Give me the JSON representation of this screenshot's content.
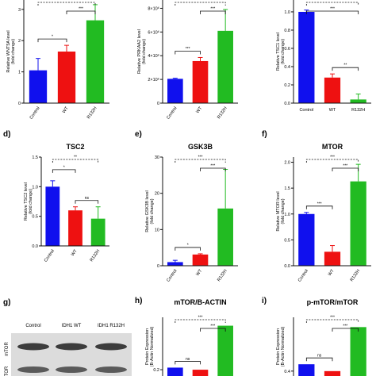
{
  "colors": {
    "control": "#1010ee",
    "wt": "#ee1111",
    "r132h": "#22bb22"
  },
  "chart_data": [
    {
      "id": "a",
      "letter": "",
      "type": "bar",
      "title": "",
      "ylabel": "Relative WNT5A level\n(fold change)",
      "categories": [
        "Control",
        "WT",
        "R132H"
      ],
      "values": [
        1.05,
        1.65,
        2.65
      ],
      "errors": [
        0.38,
        0.2,
        0.5
      ],
      "ylim": [
        0,
        3.3
      ],
      "yticks": [
        "0",
        "1",
        "2",
        "3"
      ],
      "tick_values": [
        0,
        1,
        2,
        3
      ],
      "significance": [
        {
          "from": 0,
          "to": 1,
          "label": "*",
          "dashed": false
        },
        {
          "from": 1,
          "to": 2,
          "label": "***",
          "dashed": false
        },
        {
          "from": 0,
          "to": 2,
          "label": "",
          "dashed": true
        }
      ]
    },
    {
      "id": "b",
      "letter": "",
      "type": "bar",
      "title": "",
      "ylabel": "Relative PRKAA2 level\n(fold change)",
      "categories": [
        "Control",
        "WT",
        "R132H"
      ],
      "values": [
        2050000.0,
        3550000.0,
        6100000.0
      ],
      "errors": [
        50000.0,
        300000.0,
        1800000.0
      ],
      "ylim": [
        0,
        8700000.0
      ],
      "yticks": [
        "0",
        "2×10⁶",
        "4×10⁶",
        "6×10⁶",
        "8×10⁶"
      ],
      "tick_values": [
        0,
        2000000.0,
        4000000.0,
        6000000.0,
        8000000.0
      ],
      "significance": [
        {
          "from": 0,
          "to": 1,
          "label": "***",
          "dashed": false
        },
        {
          "from": 1,
          "to": 2,
          "label": "***",
          "dashed": false
        },
        {
          "from": 0,
          "to": 2,
          "label": "",
          "dashed": true
        }
      ]
    },
    {
      "id": "c",
      "letter": "",
      "type": "bar",
      "title": "",
      "ylabel": "Relative TSC1 level\n(fold change)",
      "categories": [
        "Control",
        "WT",
        "R132H"
      ],
      "values": [
        1.0,
        0.28,
        0.04
      ],
      "errors": [
        0.02,
        0.04,
        0.06
      ],
      "ylim": [
        0,
        1.13
      ],
      "yticks": [
        "0.0",
        "0.2",
        "0.4",
        "0.6",
        "0.8",
        "1.0"
      ],
      "tick_values": [
        0,
        0.2,
        0.4,
        0.6,
        0.8,
        1.0
      ],
      "significance": [
        {
          "from": 1,
          "to": 2,
          "label": "**",
          "dashed": false
        },
        {
          "from": 0,
          "to": 2,
          "label": "***",
          "dashed": false
        },
        {
          "from": 0,
          "to": 2,
          "label": "",
          "dashed": true
        }
      ]
    },
    {
      "id": "d",
      "letter": "d)",
      "type": "bar",
      "title": "TSC2",
      "ylabel": "Relative TSC2 level\n(fold change)",
      "categories": [
        "Control",
        "WT",
        "R132H"
      ],
      "values": [
        1.0,
        0.6,
        0.46
      ],
      "errors": [
        0.1,
        0.06,
        0.2
      ],
      "ylim": [
        0,
        1.5
      ],
      "yticks": [
        "0.0",
        "0.5",
        "1.0",
        "1.5"
      ],
      "tick_values": [
        0,
        0.5,
        1.0,
        1.5
      ],
      "significance": [
        {
          "from": 1,
          "to": 2,
          "label": "ns",
          "dashed": false
        },
        {
          "from": 0,
          "to": 1,
          "label": "*",
          "dashed": false
        },
        {
          "from": 0,
          "to": 2,
          "label": "**",
          "dashed": true
        }
      ]
    },
    {
      "id": "e",
      "letter": "e)",
      "type": "bar",
      "title": "GSK3B",
      "ylabel": "Relative GSK3B level\n(fold change)",
      "categories": [
        "Control",
        "WT",
        "R132H"
      ],
      "values": [
        1.0,
        3.1,
        15.8
      ],
      "errors": [
        0.5,
        0.2,
        10.8
      ],
      "ylim": [
        0,
        30
      ],
      "yticks": [
        "0",
        "10",
        "20",
        "30"
      ],
      "tick_values": [
        0,
        10,
        20,
        30
      ],
      "significance": [
        {
          "from": 0,
          "to": 1,
          "label": "*",
          "dashed": false
        },
        {
          "from": 1,
          "to": 2,
          "label": "***",
          "dashed": false
        },
        {
          "from": 0,
          "to": 2,
          "label": "***",
          "dashed": true
        }
      ]
    },
    {
      "id": "f",
      "letter": "f)",
      "type": "bar",
      "title": "MTOR",
      "ylabel": "Relative MTOR level\n(fold change)",
      "categories": [
        "Control",
        "WT",
        "R132H"
      ],
      "values": [
        1.0,
        0.27,
        1.63
      ],
      "errors": [
        0.03,
        0.12,
        0.33
      ],
      "ylim": [
        0,
        2.1
      ],
      "yticks": [
        "0.0",
        "0.5",
        "1.0",
        "1.5",
        "2.0"
      ],
      "tick_values": [
        0,
        0.5,
        1.0,
        1.5,
        2.0
      ],
      "significance": [
        {
          "from": 0,
          "to": 1,
          "label": "***",
          "dashed": false
        },
        {
          "from": 1,
          "to": 2,
          "label": "***",
          "dashed": false
        },
        {
          "from": 0,
          "to": 2,
          "label": "***",
          "dashed": true
        }
      ]
    },
    {
      "id": "h",
      "letter": "h)",
      "type": "bar",
      "title": "mTOR/B-ACTIN",
      "ylabel": "Protein Expression\n(B-Actin Normalized)",
      "categories": [
        "",
        "",
        ""
      ],
      "values": [
        0.21,
        0.2,
        0.41
      ],
      "errors": [
        0.0,
        0.0,
        0.0
      ],
      "ylim": [
        0.17,
        0.45
      ],
      "yticks": [
        "0.2"
      ],
      "tick_values": [
        0.2
      ],
      "significance": [
        {
          "from": 0,
          "to": 1,
          "label": "ns",
          "dashed": false
        },
        {
          "from": 1,
          "to": 2,
          "label": "***",
          "dashed": false
        },
        {
          "from": 0,
          "to": 2,
          "label": "***",
          "dashed": true
        }
      ]
    },
    {
      "id": "i",
      "letter": "i)",
      "type": "bar",
      "title": "p-mTOR/mTOR",
      "ylabel": "Protein Expression\n(B-Actin Normalized)",
      "categories": [
        "",
        "",
        ""
      ],
      "values": [
        0.47,
        0.4,
        0.85
      ],
      "errors": [
        0.0,
        0.0,
        0.0
      ],
      "ylim": [
        0.35,
        0.95
      ],
      "yticks": [
        "0.4"
      ],
      "tick_values": [
        0.4
      ],
      "significance": [
        {
          "from": 0,
          "to": 1,
          "label": "ns",
          "dashed": false
        },
        {
          "from": 1,
          "to": 2,
          "label": "***",
          "dashed": false
        },
        {
          "from": 0,
          "to": 2,
          "label": "***",
          "dashed": true
        }
      ]
    }
  ],
  "blot": {
    "letter": "g)",
    "lanes": [
      "Control",
      "IDH1 WT",
      "IDH1 R132H"
    ],
    "row_labels": [
      "mTOR",
      "TOR"
    ]
  }
}
